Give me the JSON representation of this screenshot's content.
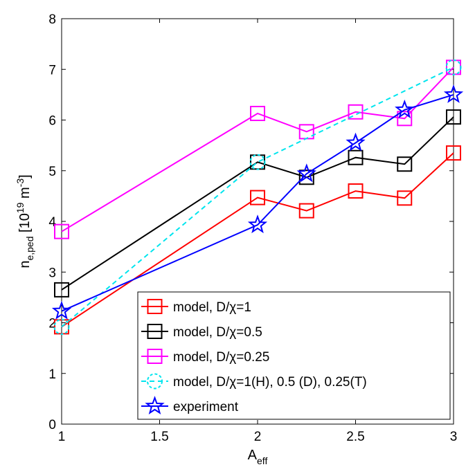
{
  "chart_data": {
    "type": "line",
    "xlabel": {
      "base": "A",
      "sub": "eff"
    },
    "ylabel": {
      "base": "n",
      "sub": "e,ped",
      "bracket_open": " [10",
      "sup1": "19",
      "mid": " m",
      "sup2": "-3",
      "bracket_close": "]"
    },
    "xlim": [
      1,
      3
    ],
    "ylim": [
      0,
      8
    ],
    "xticks": [
      1,
      1.5,
      2,
      2.5,
      3
    ],
    "yticks": [
      0,
      1,
      2,
      3,
      4,
      5,
      6,
      7,
      8
    ],
    "xtick_labels": [
      "1",
      "1.5",
      "2",
      "2.5",
      "3"
    ],
    "ytick_labels": [
      "0",
      "1",
      "2",
      "3",
      "4",
      "5",
      "6",
      "7",
      "8"
    ],
    "grid": false,
    "legend_position": "bottom-right",
    "series": [
      {
        "name": "model, D/χ=1",
        "color": "#ff0000",
        "marker": "square",
        "linestyle": "solid",
        "x": [
          1,
          2,
          2.25,
          2.5,
          2.75,
          3
        ],
        "y": [
          1.92,
          4.47,
          4.21,
          4.6,
          4.46,
          5.35
        ]
      },
      {
        "name": "model, D/χ=0.5",
        "color": "#000000",
        "marker": "square",
        "linestyle": "solid",
        "x": [
          1,
          2,
          2.25,
          2.5,
          2.75,
          3
        ],
        "y": [
          2.65,
          5.17,
          4.87,
          5.26,
          5.13,
          6.06
        ]
      },
      {
        "name": "model, D/χ=0.25",
        "color": "#ff00ff",
        "marker": "square",
        "linestyle": "solid",
        "x": [
          1,
          2,
          2.25,
          2.5,
          2.75,
          3
        ],
        "y": [
          3.8,
          6.13,
          5.77,
          6.16,
          6.03,
          7.04
        ]
      },
      {
        "name": "model, D/χ=1(H), 0.5 (D), 0.25(T)",
        "color": "#00e5ee",
        "marker": "circle",
        "linestyle": "dashed",
        "x": [
          1,
          2,
          3
        ],
        "y": [
          1.92,
          5.17,
          7.04
        ]
      },
      {
        "name": "experiment",
        "color": "#0000ff",
        "marker": "star",
        "linestyle": "solid",
        "x": [
          1,
          2,
          2.25,
          2.5,
          2.75,
          3
        ],
        "y": [
          2.23,
          3.93,
          4.94,
          5.55,
          6.2,
          6.5
        ]
      }
    ]
  }
}
